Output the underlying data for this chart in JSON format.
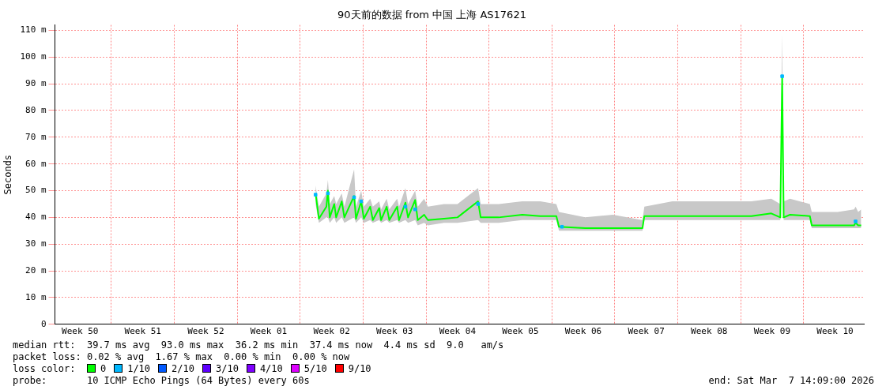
{
  "chart_data": {
    "type": "line",
    "title": "90天前的数据 from 中国 上海 AS17621",
    "ylabel": "Seconds",
    "xlim": [
      "2025-12-07T14:09",
      "2026-03-07T14:09"
    ],
    "ylim": [
      0,
      112
    ],
    "xticks": [
      {
        "value": "2025-12-10T09:00",
        "label": "Week 50"
      },
      {
        "value": "2025-12-13T21:00",
        "label": null
      },
      {
        "value": "2025-12-17T09:00",
        "label": "Week 51"
      },
      {
        "value": "2025-12-20T21:00",
        "label": null
      },
      {
        "value": "2025-12-24T09:00",
        "label": "Week 52"
      },
      {
        "value": "2025-12-27T21:00",
        "label": null
      },
      {
        "value": "2025-12-31T09:00",
        "label": "Week 01"
      },
      {
        "value": "2026-01-03T21:00",
        "label": null
      },
      {
        "value": "2026-01-07T09:00",
        "label": "Week 02"
      },
      {
        "value": "2026-01-10T21:00",
        "label": null
      },
      {
        "value": "2026-01-14T09:00",
        "label": "Week 03"
      },
      {
        "value": "2026-01-17T21:00",
        "label": null
      },
      {
        "value": "2026-01-21T09:00",
        "label": "Week 04"
      },
      {
        "value": "2026-01-24T21:00",
        "label": null
      },
      {
        "value": "2026-01-28T09:00",
        "label": "Week 05"
      },
      {
        "value": "2026-01-31T21:00",
        "label": null
      },
      {
        "value": "2026-02-04T09:00",
        "label": "Week 06"
      },
      {
        "value": "2026-02-07T21:00",
        "label": null
      },
      {
        "value": "2026-02-11T09:00",
        "label": "Week 07"
      },
      {
        "value": "2026-02-14T21:00",
        "label": null
      },
      {
        "value": "2026-02-18T09:00",
        "label": "Week 08"
      },
      {
        "value": "2026-02-21T21:00",
        "label": null
      },
      {
        "value": "2026-02-25T09:00",
        "label": "Week 09"
      },
      {
        "value": "2026-02-28T21:00",
        "label": null
      },
      {
        "value": "2026-03-04T09:00",
        "label": "Week 10"
      }
    ],
    "yticks": [
      0,
      {
        "value": 10,
        "label": "10 m"
      },
      {
        "value": 20,
        "label": "20 m"
      },
      {
        "value": 30,
        "label": "30 m"
      },
      {
        "value": 40,
        "label": "40 m"
      },
      {
        "value": 50,
        "label": "50 m"
      },
      {
        "value": 60,
        "label": "60 m"
      },
      {
        "value": 70,
        "label": "70 m"
      },
      {
        "value": 80,
        "label": "80 m"
      },
      {
        "value": 90,
        "label": "90 m"
      },
      {
        "value": 100,
        "label": "100 m"
      },
      {
        "value": 110,
        "label": "110 m"
      }
    ],
    "grid": true,
    "legend": "bottom",
    "legend_title": "loss color:",
    "series": [
      {
        "name": "0",
        "color": "#00ff00",
        "marker": "none",
        "x": [
          "2026-01-05T14:00",
          "2026-01-05T23:00",
          "2026-01-06T19:00",
          "2026-01-06T23:00",
          "2026-01-07T04:00",
          "2026-01-07T16:00",
          "2026-01-07T21:00",
          "2026-01-08T12:00",
          "2026-01-08T19:00",
          "2026-01-09T21:00",
          "2026-01-10T02:00",
          "2026-01-10T16:00",
          "2026-01-10T23:00",
          "2026-01-11T16:00",
          "2026-01-11T23:00",
          "2026-01-12T16:00",
          "2026-01-12T21:00",
          "2026-01-13T12:00",
          "2026-01-13T19:00",
          "2026-01-14T16:00",
          "2026-01-14T21:00",
          "2026-01-15T14:00",
          "2026-01-15T21:00",
          "2026-01-16T16:00",
          "2026-01-16T23:00",
          "2026-01-17T16:00",
          "2026-01-18T02:00",
          "2026-01-19T21:00",
          "2026-01-21T09:00",
          "2026-01-23T16:00",
          "2026-01-23T23:00",
          "2026-01-25T23:00",
          "2026-01-28T14:00",
          "2026-01-30T14:00",
          "2026-02-01T09:00",
          "2026-02-01T16:00",
          "2026-02-04T14:00",
          "2026-02-07T16:00",
          "2026-02-10T23:00",
          "2026-02-11T04:00",
          "2026-02-14T07:00",
          "2026-02-18T16:00",
          "2026-02-23T02:00",
          "2026-02-25T07:00",
          "2026-02-26T07:00",
          "2026-02-26T12:00",
          "2026-02-26T16:00",
          "2026-02-27T09:00",
          "2026-03-01T14:00",
          "2026-03-01T19:00",
          "2026-03-04T16:00",
          "2026-03-06T12:00",
          "2026-03-06T16:00",
          "2026-03-06T23:00",
          "2026-03-07T07:00"
        ],
        "values": [
          49,
          39.5,
          44,
          50,
          40,
          45,
          40,
          46,
          40,
          48,
          39.5,
          46,
          39.5,
          44,
          39,
          43.5,
          39,
          44,
          39,
          44,
          39,
          45.5,
          40,
          46.5,
          39,
          41,
          39,
          39.5,
          40,
          46,
          40,
          40,
          41,
          40.5,
          40.5,
          36.5,
          36,
          36,
          36,
          40.5,
          40.5,
          40.5,
          40.5,
          41.5,
          40,
          92.8,
          40,
          41,
          40.5,
          37,
          37,
          37,
          38,
          37,
          37
        ],
        "lower": [
          45,
          38,
          40,
          40,
          38,
          40,
          38,
          40,
          38,
          40,
          38,
          40,
          38,
          39,
          38,
          39,
          38,
          39,
          38,
          39,
          38,
          39,
          38,
          39,
          37,
          38,
          37,
          38,
          38,
          39,
          38,
          38,
          39,
          39,
          39,
          35,
          35,
          35,
          35,
          39,
          39,
          39,
          39,
          39,
          39,
          85,
          39,
          39,
          39,
          36,
          36,
          36,
          36,
          36,
          36
        ],
        "upper": [
          52,
          44,
          49,
          54,
          45,
          48,
          45,
          49,
          44,
          58,
          44,
          50,
          44,
          47,
          44,
          46,
          43,
          47,
          43,
          47,
          44,
          51,
          45,
          50,
          44,
          47,
          44,
          45,
          45,
          51,
          45,
          45,
          46,
          46,
          45,
          42,
          40,
          41,
          39,
          44,
          46,
          46,
          46,
          47,
          45,
          108.5,
          46,
          47,
          45,
          42,
          42,
          43,
          44,
          42,
          43
        ]
      },
      {
        "name": "1/10",
        "color": "#00b8ff",
        "type": "scatter",
        "marker": "square",
        "x": [
          "2026-01-05T14:00",
          "2026-01-06T23:00",
          "2026-01-09T21:00",
          "2026-01-10T16:00",
          "2026-01-15T14:00",
          "2026-01-16T16:00",
          "2026-01-23T16:00",
          "2026-02-02T00:00",
          "2026-02-26T12:00",
          "2026-03-06T16:00"
        ],
        "values": [
          48.5,
          49,
          47.5,
          46,
          44,
          43,
          45,
          36.5,
          92.8,
          38.5
        ]
      },
      {
        "name": "2/10",
        "color": "#0059ff",
        "type": "scatter"
      },
      {
        "name": "3/10",
        "color": "#5e00ff",
        "type": "scatter"
      },
      {
        "name": "4/10",
        "color": "#7e00ff",
        "type": "scatter"
      },
      {
        "name": "5/10",
        "color": "#dd00ff",
        "type": "scatter"
      },
      {
        "name": "9/10",
        "color": "#ff0000",
        "type": "scatter"
      }
    ],
    "annotations": [
      "median rtt:  39.7 ms avg  93.0 ms max  36.2 ms min  37.4 ms now  4.4 ms sd  9.0   am/s",
      "packet loss: 0.02 % avg  1.67 % max  0.00 % min  0.00 % now",
      "probe:       10 ICMP Echo Pings (64 Bytes) every 60s",
      "end: Sat Mar  7 14:09:00 2026"
    ]
  }
}
